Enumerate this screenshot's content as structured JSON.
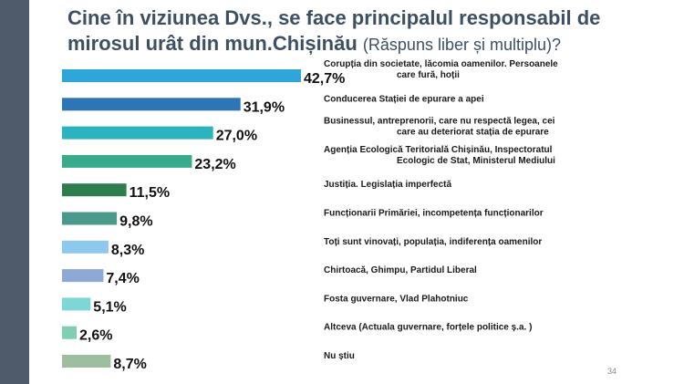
{
  "title": {
    "main": "Cine în viziunea Dvs., se face principalul responsabil de mirosul urât din mun.Chișinău",
    "sub": "(Răspuns liber și multiplu)?"
  },
  "page_number": "34",
  "colors": {
    "stripe": "#4f5b6b",
    "title": "#3d4f63",
    "value_text": "#111111",
    "category_text": "#1a1a1a"
  },
  "chart_data": {
    "type": "bar",
    "orientation": "horizontal",
    "categories": [
      "Corupția din societate, lăcomia oamenilor. Persoanele care fură, hoții",
      "Conducerea Stației de epurare a apei",
      "Businessul, antreprenorii, care nu respectă legea, cei care au deteriorat stația de epurare",
      "Agenția Ecologică Teritorială Chișinău, Inspectoratul Ecologic de Stat, Ministerul Mediului",
      "Justiția. Legislația imperfectă",
      "Funcționarii Primăriei, incompetența funcționarilor",
      "Toți sunt vinovați, populația, indiferența oamenilor",
      "Chirtoacă, Ghimpu, Partidul Liberal",
      "Fosta guvernare, Vlad Plahotniuc",
      "Altceva (Actuala guvernare, forțele politice ș.a. )",
      "Nu știu"
    ],
    "category_lines": [
      [
        "Corupția din societate, lăcomia oamenilor. Persoanele",
        "care fură, hoții"
      ],
      [
        "Conducerea Stației de epurare a apei"
      ],
      [
        "Businessul, antreprenorii, care nu respectă legea, cei",
        "care au deteriorat stația de epurare"
      ],
      [
        "Agenția Ecologică Teritorială Chișinău, Inspectoratul",
        "Ecologic de Stat, Ministerul Mediului"
      ],
      [
        "Justiția. Legislația imperfectă"
      ],
      [
        "Funcționarii Primăriei, incompetența funcționarilor"
      ],
      [
        "Toți sunt vinovați, populația, indiferența oamenilor"
      ],
      [
        "Chirtoacă, Ghimpu, Partidul Liberal"
      ],
      [
        "Fosta guvernare, Vlad Plahotniuc"
      ],
      [
        "Altceva (Actuala guvernare, forțele politice ș.a. )"
      ],
      [
        "Nu știu"
      ]
    ],
    "values": [
      42.7,
      31.9,
      27.0,
      23.2,
      11.5,
      9.8,
      8.3,
      7.4,
      5.1,
      2.6,
      8.7
    ],
    "value_labels": [
      "42,7%",
      "31,9%",
      "27,0%",
      "23,2%",
      "11,5%",
      "9,8%",
      "8,3%",
      "7,4%",
      "5,1%",
      "2,6%",
      "8,7%"
    ],
    "bar_colors": [
      "#2ea6d9",
      "#2e75b6",
      "#2bb3bf",
      "#3aaa8c",
      "#2e7d4f",
      "#4a9a8c",
      "#8ec8ec",
      "#8ea9d6",
      "#7fd6d6",
      "#7fcfb0",
      "#9dbf9f"
    ],
    "xlim": [
      0,
      42.7
    ],
    "grid": false,
    "legend": "none"
  }
}
